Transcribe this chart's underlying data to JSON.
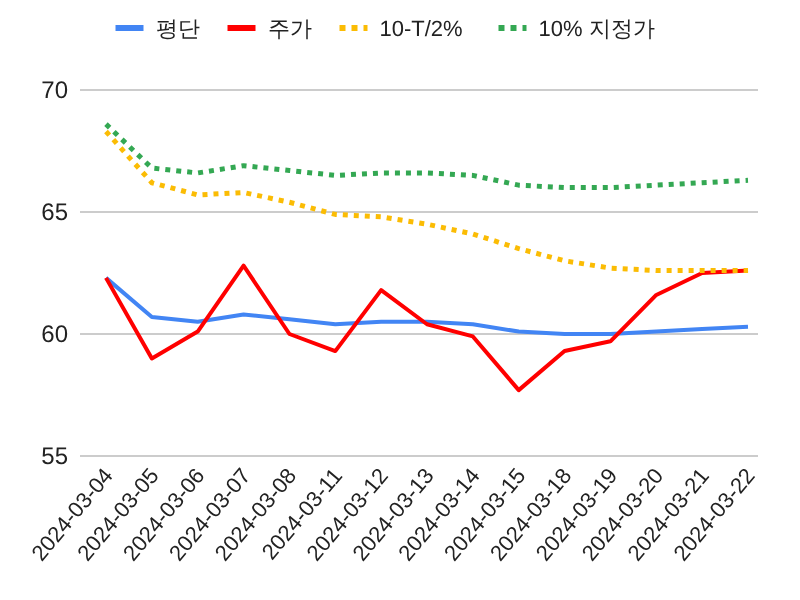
{
  "chart_data": {
    "type": "line",
    "categories": [
      "2024-03-04",
      "2024-03-05",
      "2024-03-06",
      "2024-03-07",
      "2024-03-08",
      "2024-03-11",
      "2024-03-12",
      "2024-03-13",
      "2024-03-14",
      "2024-03-15",
      "2024-03-18",
      "2024-03-19",
      "2024-03-20",
      "2024-03-21",
      "2024-03-22"
    ],
    "series": [
      {
        "name": "평단",
        "color": "#4285f4",
        "line_style": "solid",
        "values": [
          62.3,
          60.7,
          60.5,
          60.8,
          60.6,
          60.4,
          60.5,
          60.5,
          60.4,
          60.1,
          60.0,
          60.0,
          60.1,
          60.2,
          60.3
        ]
      },
      {
        "name": "주가",
        "color": "#ff0000",
        "line_style": "solid",
        "values": [
          62.3,
          59.0,
          60.1,
          62.8,
          60.0,
          59.3,
          61.8,
          60.4,
          59.9,
          57.7,
          59.3,
          59.7,
          61.6,
          62.5,
          62.6
        ]
      },
      {
        "name": "10-T/2%",
        "color": "#fbbc04",
        "line_style": "dotted",
        "values": [
          68.3,
          66.2,
          65.7,
          65.8,
          65.4,
          64.9,
          64.8,
          64.5,
          64.1,
          63.5,
          63.0,
          62.7,
          62.6,
          62.6,
          62.6
        ]
      },
      {
        "name": "10% 지정가",
        "color": "#34a853",
        "line_style": "dotted",
        "values": [
          68.6,
          66.8,
          66.6,
          66.9,
          66.7,
          66.5,
          66.6,
          66.6,
          66.5,
          66.1,
          66.0,
          66.0,
          66.1,
          66.2,
          66.3
        ]
      }
    ],
    "ylim": [
      55,
      70
    ],
    "yticks": [
      55,
      60,
      65,
      70
    ],
    "grid": "y",
    "legend": "top"
  }
}
